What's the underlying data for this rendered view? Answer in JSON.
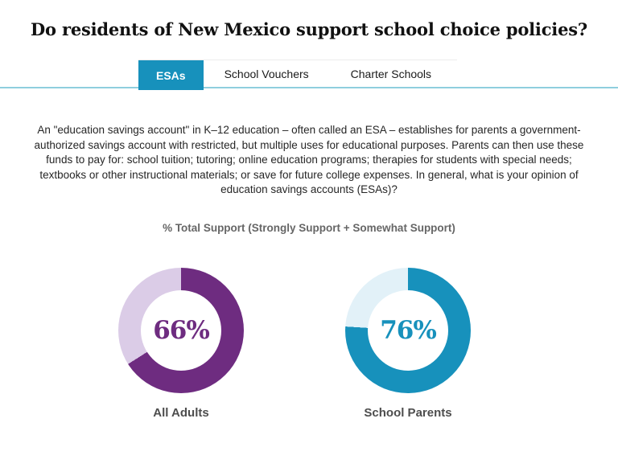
{
  "page": {
    "title": "Do residents of New Mexico support school choice policies?"
  },
  "tabs": [
    {
      "label": "ESAs",
      "active": true
    },
    {
      "label": "School Vouchers",
      "active": false
    },
    {
      "label": "Charter Schools",
      "active": false
    }
  ],
  "description": "An \"education savings account\" in K–12 education – often called an ESA – establishes for parents a government-authorized savings account with restricted, but multiple uses for educational purposes. Parents can then use these funds to pay for: school tuition; tutoring; online education programs; therapies for students with special needs; textbooks or other instructional materials; or save for future college expenses. In general, what is your opinion of education savings accounts (ESAs)?",
  "colors": {
    "accent_teal": "#1791bc",
    "tab_rule_teal": "#8fcede",
    "purple_dark": "#6e2c80",
    "purple_light": "#dbcce7",
    "teal_light": "#e2f1f8"
  },
  "chart_data": {
    "type": "pie",
    "subtype": "donut",
    "title": "% Total Support (Strongly Support + Somewhat Support)",
    "start_angle_deg": 0,
    "direction": "clockwise",
    "legend": "none",
    "charts": [
      {
        "category": "All Adults",
        "value_pct": 66,
        "remainder_pct": 34,
        "center_label": "66%",
        "value_color": "#6e2c80",
        "remainder_color": "#dbcce7"
      },
      {
        "category": "School Parents",
        "value_pct": 76,
        "remainder_pct": 24,
        "center_label": "76%",
        "value_color": "#1791bc",
        "remainder_color": "#e2f1f8"
      }
    ]
  }
}
